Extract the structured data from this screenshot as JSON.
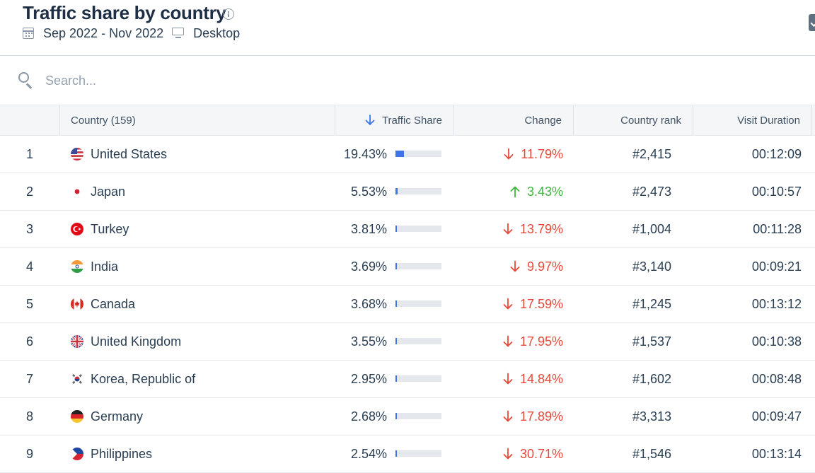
{
  "header": {
    "title": "Traffic share by country",
    "date_range": "Sep 2022 - Nov 2022",
    "device": "Desktop"
  },
  "search": {
    "placeholder": "Search..."
  },
  "table": {
    "columns": {
      "country": "Country (159)",
      "traffic_share": "Traffic Share",
      "change": "Change",
      "country_rank": "Country rank",
      "visit_duration": "Visit Duration"
    },
    "rows": [
      {
        "rank": "1",
        "country": "United States",
        "flag": "us-flag-icon",
        "share": "19.43%",
        "share_value": 19.43,
        "change": "11.79%",
        "direction": "down",
        "country_rank": "#2,415",
        "duration": "00:12:09"
      },
      {
        "rank": "2",
        "country": "Japan",
        "flag": "jp-flag-icon",
        "share": "5.53%",
        "share_value": 5.53,
        "change": "3.43%",
        "direction": "up",
        "country_rank": "#2,473",
        "duration": "00:10:57"
      },
      {
        "rank": "3",
        "country": "Turkey",
        "flag": "tr-flag-icon",
        "share": "3.81%",
        "share_value": 3.81,
        "change": "13.79%",
        "direction": "down",
        "country_rank": "#1,004",
        "duration": "00:11:28"
      },
      {
        "rank": "4",
        "country": "India",
        "flag": "in-flag-icon",
        "share": "3.69%",
        "share_value": 3.69,
        "change": "9.97%",
        "direction": "down",
        "country_rank": "#3,140",
        "duration": "00:09:21"
      },
      {
        "rank": "5",
        "country": "Canada",
        "flag": "ca-flag-icon",
        "share": "3.68%",
        "share_value": 3.68,
        "change": "17.59%",
        "direction": "down",
        "country_rank": "#1,245",
        "duration": "00:13:12"
      },
      {
        "rank": "6",
        "country": "United Kingdom",
        "flag": "gb-flag-icon",
        "share": "3.55%",
        "share_value": 3.55,
        "change": "17.95%",
        "direction": "down",
        "country_rank": "#1,537",
        "duration": "00:10:38"
      },
      {
        "rank": "7",
        "country": "Korea, Republic of",
        "flag": "kr-flag-icon",
        "share": "2.95%",
        "share_value": 2.95,
        "change": "14.84%",
        "direction": "down",
        "country_rank": "#1,602",
        "duration": "00:08:48"
      },
      {
        "rank": "8",
        "country": "Germany",
        "flag": "de-flag-icon",
        "share": "2.68%",
        "share_value": 2.68,
        "change": "17.89%",
        "direction": "down",
        "country_rank": "#3,313",
        "duration": "00:09:47"
      },
      {
        "rank": "9",
        "country": "Philippines",
        "flag": "ph-flag-icon",
        "share": "2.54%",
        "share_value": 2.54,
        "change": "30.71%",
        "direction": "down",
        "country_rank": "#1,546",
        "duration": "00:13:14"
      }
    ]
  },
  "colors": {
    "accent": "#3e74e6",
    "negative": "#e8483a",
    "positive": "#3fb73d"
  }
}
